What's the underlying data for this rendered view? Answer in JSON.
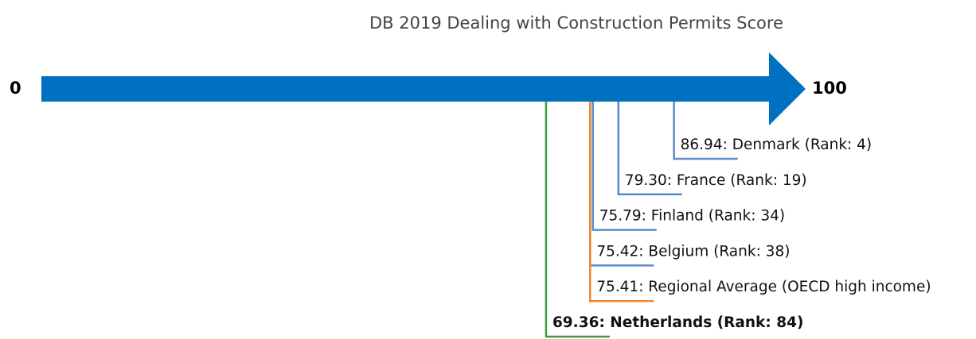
{
  "chart_data": {
    "type": "number_line",
    "title": "DB 2019 Dealing with Construction Permits Score",
    "xlim": [
      0,
      100
    ],
    "xticks": [
      0,
      100
    ],
    "axis_color": "#0070c0",
    "values": [
      86.94,
      79.3,
      75.79,
      75.42,
      75.41,
      69.36
    ],
    "value_labels": [
      "86.94: Denmark (Rank: 4)",
      "79.30: France (Rank: 19)",
      "75.79: Finland (Rank: 34)",
      "75.42: Belgium (Rank: 38)",
      "75.41: Regional Average (OECD high income)",
      "69.36: Netherlands (Rank: 84)"
    ],
    "colors": [
      "#5b8bc7",
      "#5b8bc7",
      "#5b8bc7",
      "#5b8bc7",
      "#ef8a2c",
      "#3d9b48"
    ],
    "bold": [
      false,
      false,
      false,
      false,
      false,
      true
    ]
  }
}
